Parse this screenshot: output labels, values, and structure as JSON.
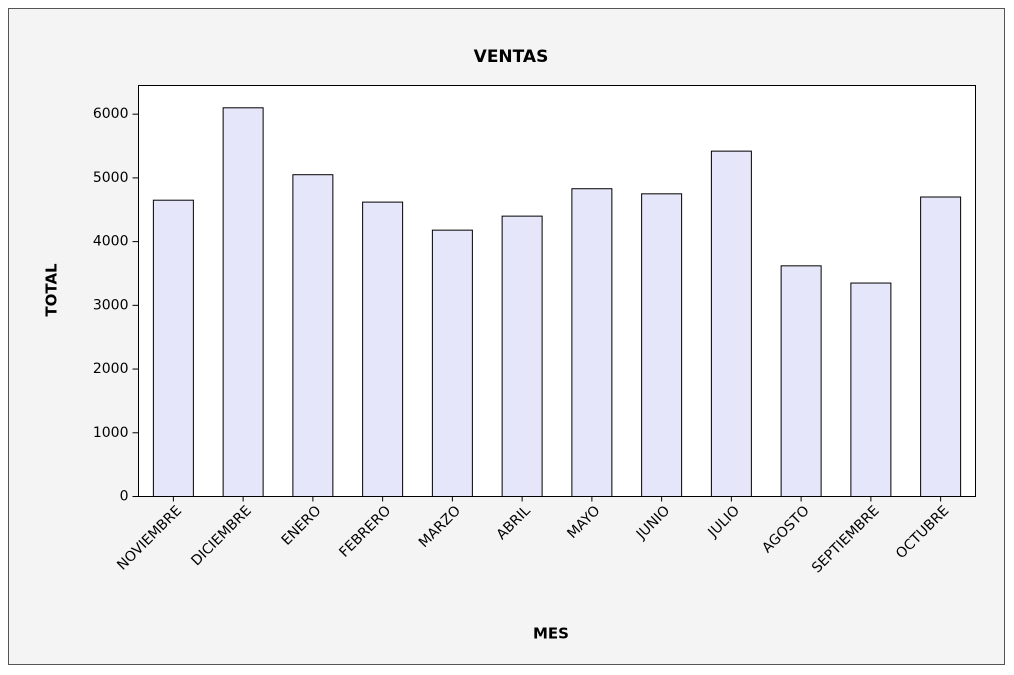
{
  "chart_data": {
    "type": "bar",
    "title": "VENTAS",
    "x_label": "MES",
    "y_label": "TOTAL",
    "categories": [
      "NOVIEMBRE",
      "DICIEMBRE",
      "ENERO",
      "FEBRERO",
      "MARZO",
      "ABRIL",
      "MAYO",
      "JUNIO",
      "JULIO",
      "AGOSTO",
      "SEPTIEMBRE",
      "OCTUBRE"
    ],
    "values": [
      4650,
      6100,
      5050,
      4620,
      4180,
      4400,
      4830,
      4750,
      5420,
      3620,
      3350,
      4700
    ],
    "color": "#e6e6fa",
    "ylim": [
      0,
      6450
    ],
    "yticks": [
      0,
      1000,
      2000,
      3000,
      4000,
      5000,
      6000
    ],
    "grid": false
  }
}
